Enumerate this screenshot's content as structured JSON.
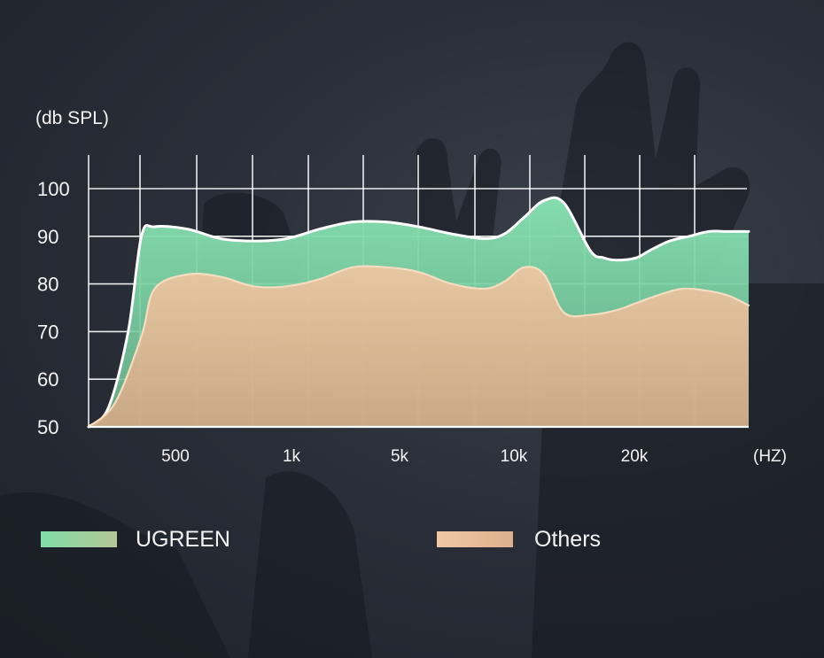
{
  "chart_data": {
    "type": "area",
    "ylabel": "(db SPL)",
    "xlabel": "(HZ)",
    "ylim": [
      50,
      100
    ],
    "yticks": [
      100,
      90,
      80,
      70,
      60,
      50
    ],
    "x_tick_labels": [
      "500",
      "1k",
      "5k",
      "10k",
      "20k"
    ],
    "grid": true,
    "legend_position": "bottom",
    "series": [
      {
        "name": "UGREEN",
        "color": "#7fdca8",
        "x": [
          0,
          0.03,
          0.06,
          0.08,
          0.1,
          0.15,
          0.2,
          0.25,
          0.3,
          0.35,
          0.4,
          0.45,
          0.5,
          0.55,
          0.6,
          0.63,
          0.66,
          0.69,
          0.72,
          0.76,
          0.78,
          0.8,
          0.83,
          0.85,
          0.88,
          0.91,
          0.94,
          0.97,
          1.0
        ],
        "values": [
          50,
          54,
          70,
          90,
          92,
          91.5,
          89.5,
          89,
          89.5,
          91.5,
          93,
          93,
          92,
          90.5,
          89.5,
          90.5,
          94,
          97.5,
          97,
          87,
          85.5,
          85,
          85.5,
          87,
          89,
          90,
          91,
          91,
          91
        ]
      },
      {
        "name": "Others",
        "color": "#e7bf97",
        "x": [
          0,
          0.04,
          0.08,
          0.1,
          0.15,
          0.2,
          0.25,
          0.3,
          0.35,
          0.4,
          0.45,
          0.5,
          0.55,
          0.6,
          0.63,
          0.66,
          0.69,
          0.72,
          0.76,
          0.8,
          0.83,
          0.86,
          0.9,
          0.94,
          0.97,
          1.0
        ],
        "values": [
          50,
          55,
          69,
          79,
          82,
          81.5,
          79.5,
          79.5,
          81,
          83.5,
          83.5,
          82.5,
          80,
          79,
          80.5,
          83.5,
          82,
          74,
          73.5,
          74.5,
          76,
          77.5,
          79,
          78.5,
          77.5,
          75.5
        ]
      }
    ]
  },
  "legend": {
    "items": [
      {
        "label": "UGREEN",
        "color": "#7fdca8"
      },
      {
        "label": "Others",
        "color": "#e7bf97"
      }
    ]
  }
}
